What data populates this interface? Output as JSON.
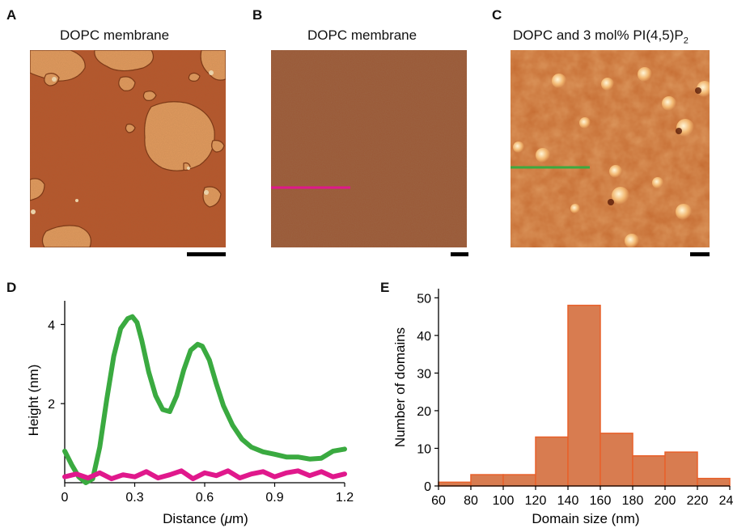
{
  "panels": {
    "A": {
      "letter": "A",
      "title": "DOPC membrane"
    },
    "B": {
      "letter": "B",
      "title": "DOPC membrane"
    },
    "C": {
      "letter": "C",
      "title_main": "DOPC and 3 mol% PI(4,5)P",
      "title_sub": "2"
    },
    "D": {
      "letter": "D"
    },
    "E": {
      "letter": "E"
    }
  },
  "colors": {
    "membrane": "#b4552a",
    "membrane_b": "#9c5836",
    "domain": "#e09458",
    "line_green": "#3aaa40",
    "line_magenta": "#e0188c",
    "bar_fill": "#d87c50",
    "bar_edge": "#e8602a"
  },
  "chart_data": [
    {
      "type": "line",
      "xlabel_main": "Distance (",
      "xlabel_mu": "μ",
      "xlabel_end": "m)",
      "ylabel": "Height (nm)",
      "xlim": [
        0,
        1.2
      ],
      "ylim": [
        0,
        4.6
      ],
      "xticks": [
        "0",
        "0.3",
        "0.6",
        "0.9",
        "1.2"
      ],
      "yticks": [
        "2",
        "4"
      ],
      "series": [
        {
          "color": "#3aaa40",
          "x": [
            0,
            0.03,
            0.06,
            0.09,
            0.12,
            0.15,
            0.18,
            0.21,
            0.24,
            0.27,
            0.29,
            0.31,
            0.33,
            0.36,
            0.39,
            0.42,
            0.45,
            0.48,
            0.51,
            0.54,
            0.57,
            0.59,
            0.62,
            0.65,
            0.68,
            0.72,
            0.76,
            0.8,
            0.85,
            0.9,
            0.95,
            1.0,
            1.05,
            1.1,
            1.15,
            1.2
          ],
          "y": [
            0.8,
            0.45,
            0.15,
            0.0,
            0.1,
            0.9,
            2.1,
            3.2,
            3.9,
            4.15,
            4.2,
            4.05,
            3.6,
            2.8,
            2.2,
            1.85,
            1.8,
            2.2,
            2.85,
            3.35,
            3.5,
            3.45,
            3.1,
            2.5,
            1.95,
            1.45,
            1.1,
            0.9,
            0.78,
            0.72,
            0.65,
            0.65,
            0.6,
            0.62,
            0.8,
            0.85
          ]
        },
        {
          "color": "#e0188c",
          "x": [
            0,
            0.05,
            0.1,
            0.15,
            0.2,
            0.25,
            0.3,
            0.35,
            0.4,
            0.45,
            0.5,
            0.55,
            0.6,
            0.65,
            0.7,
            0.75,
            0.8,
            0.85,
            0.9,
            0.95,
            1.0,
            1.05,
            1.1,
            1.15,
            1.2
          ],
          "y": [
            0.15,
            0.22,
            0.12,
            0.25,
            0.1,
            0.2,
            0.15,
            0.28,
            0.12,
            0.2,
            0.3,
            0.1,
            0.25,
            0.18,
            0.3,
            0.12,
            0.22,
            0.28,
            0.15,
            0.25,
            0.3,
            0.18,
            0.28,
            0.15,
            0.22
          ]
        }
      ]
    },
    {
      "type": "bar",
      "xlabel": "Domain size (nm)",
      "ylabel": "Number of domains",
      "bin_edges": [
        60,
        80,
        100,
        120,
        140,
        160,
        180,
        200,
        220,
        240
      ],
      "values": [
        1,
        3,
        3,
        13,
        48,
        14,
        8,
        9,
        2
      ],
      "xticks": [
        "60",
        "80",
        "100",
        "120",
        "140",
        "160",
        "180",
        "200",
        "220",
        "240"
      ],
      "yticks": [
        "0",
        "10",
        "20",
        "30",
        "40",
        "50"
      ],
      "ylim": [
        0,
        52
      ]
    }
  ]
}
